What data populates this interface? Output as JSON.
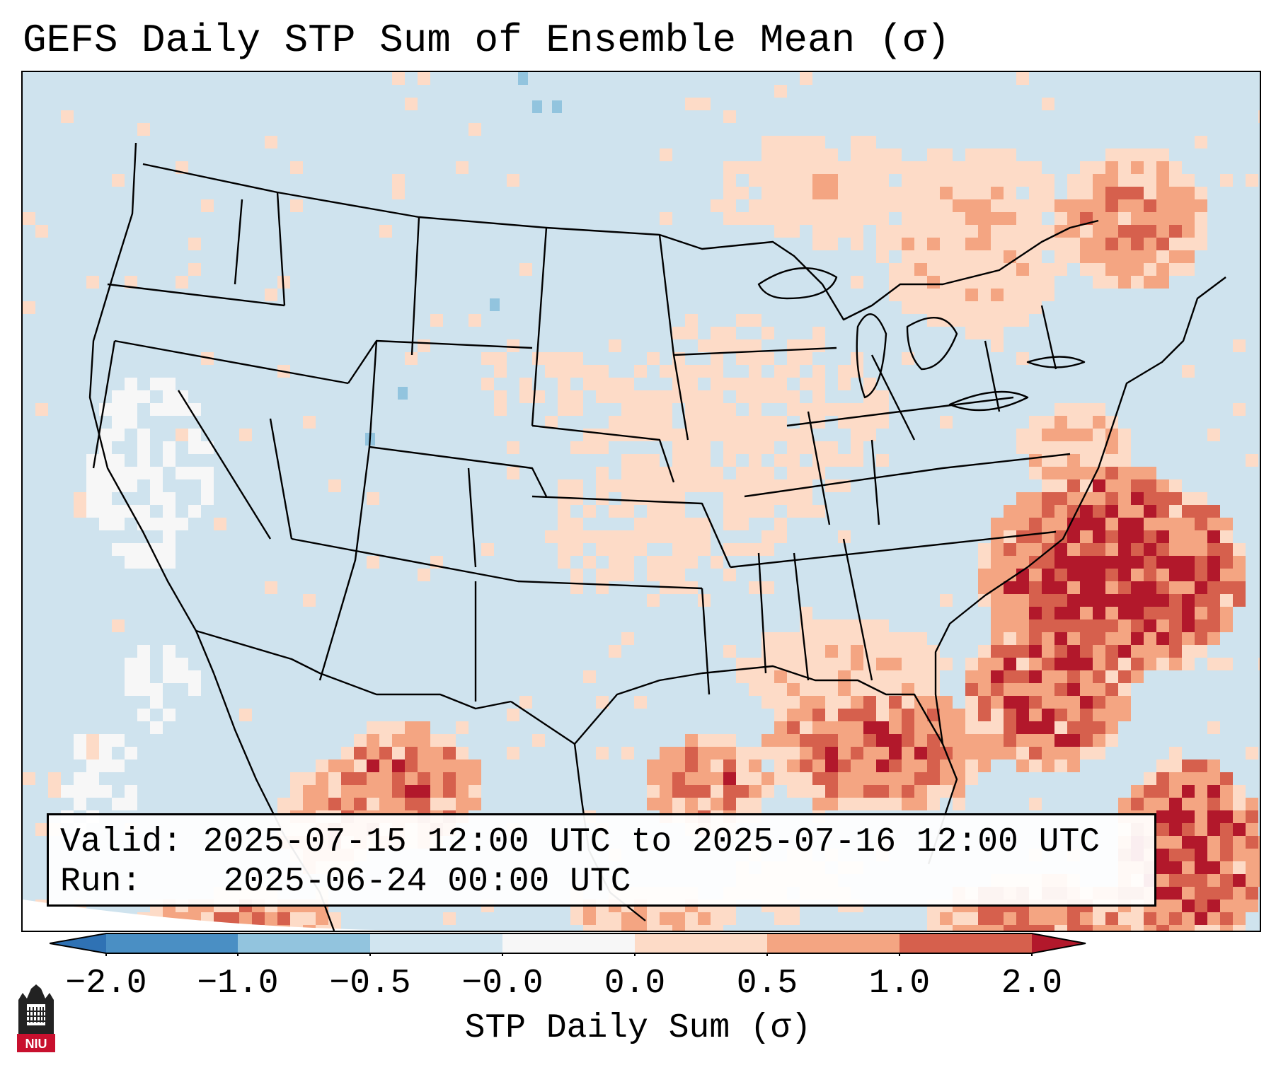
{
  "title": "GEFS Daily STP Sum of Ensemble Mean (σ)",
  "map": {
    "region": "Continental United States, southern Canada, northern Mexico, Gulf of Mexico",
    "background_color": "#cfe3ee",
    "field_description": "Daily STP sum anomaly of GEFS ensemble mean; positive anomalies (0.5 to 2+) concentrated over the western Atlantic off the Carolinas, the Gulf of Mexico, Florida, Cuba region and northwestern Mexico; scattered light positives over the Plains, Midwest, Northeast and southern Canada; near-zero elsewhere; white (slightly negative) areas off the California coast."
  },
  "info": {
    "valid_label": "Valid:",
    "valid_value": "2025-07-15 12:00 UTC to 2025-07-16 12:00 UTC",
    "run_label": "Run:",
    "run_value": "2025-06-24 00:00 UTC"
  },
  "colorbar": {
    "label": "STP Daily Sum (σ)",
    "ticks": [
      "−2.0",
      "−1.0",
      "−0.5",
      "−0.0",
      "0.0",
      "0.5",
      "1.0",
      "2.0"
    ],
    "colors": {
      "under": "#2f72b4",
      "bin_m2_m1": "#4a8fc4",
      "bin_m1_m05": "#92c4de",
      "bin_m05_m0": "#d1e5f0",
      "bin_m0_0": "#f7f7f7",
      "bin_0_05": "#fddbc7",
      "bin_05_1": "#f4a582",
      "bin_1_2": "#d6604d",
      "over": "#b2182b"
    }
  },
  "logo": {
    "text": "NIU"
  }
}
